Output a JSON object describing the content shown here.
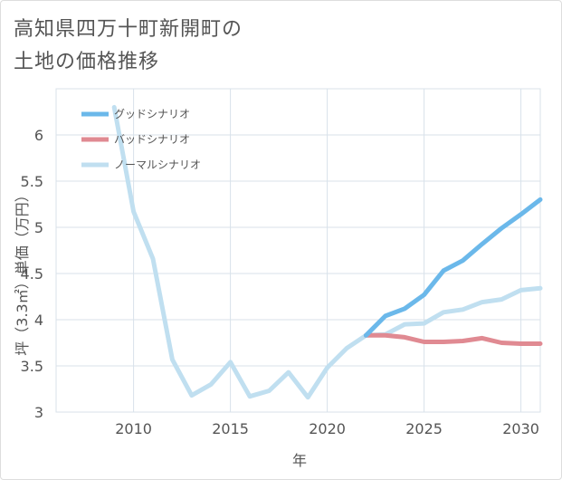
{
  "title_lines": [
    "高知県四万十町新開町の",
    "土地の価格推移"
  ],
  "chart_data": {
    "type": "line",
    "xlabel": "年",
    "ylabel": "坪（3.3㎡）単価（万円）",
    "xlim": [
      2006,
      2031
    ],
    "ylim": [
      3,
      6.5
    ],
    "x_ticks": [
      2010,
      2015,
      2020,
      2025,
      2030
    ],
    "y_ticks": [
      3,
      3.5,
      4,
      4.5,
      5,
      5.5,
      6
    ],
    "x_tick_labels": [
      "2010",
      "2015",
      "2020",
      "2025",
      "2030"
    ],
    "y_tick_labels": [
      "3",
      "3.5",
      "4",
      "4.5",
      "5",
      "5.5",
      "6"
    ],
    "grid": true,
    "legend_position": "top-left",
    "series": [
      {
        "name": "グッドシナリオ",
        "color": "#6bb8ea",
        "x": [
          2022,
          2023,
          2024,
          2025,
          2026,
          2027,
          2028,
          2029,
          2030,
          2031
        ],
        "values": [
          3.83,
          4.04,
          4.12,
          4.27,
          4.53,
          4.64,
          4.82,
          4.99,
          5.14,
          5.3
        ]
      },
      {
        "name": "バッドシナリオ",
        "color": "#e08a92",
        "x": [
          2022,
          2023,
          2024,
          2025,
          2026,
          2027,
          2028,
          2029,
          2030,
          2031
        ],
        "values": [
          3.83,
          3.83,
          3.81,
          3.76,
          3.76,
          3.77,
          3.8,
          3.75,
          3.74,
          3.74
        ]
      },
      {
        "name": "ノーマルシナリオ",
        "color": "#c0dff0",
        "x": [
          2009,
          2010,
          2011,
          2012,
          2013,
          2014,
          2015,
          2016,
          2017,
          2018,
          2019,
          2020,
          2021,
          2022,
          2023,
          2024,
          2025,
          2026,
          2027,
          2028,
          2029,
          2030,
          2031
        ],
        "values": [
          6.3,
          5.17,
          4.66,
          3.57,
          3.18,
          3.3,
          3.54,
          3.17,
          3.23,
          3.43,
          3.16,
          3.48,
          3.69,
          3.83,
          3.84,
          3.95,
          3.96,
          4.08,
          4.11,
          4.19,
          4.22,
          4.32,
          4.34
        ]
      }
    ]
  }
}
